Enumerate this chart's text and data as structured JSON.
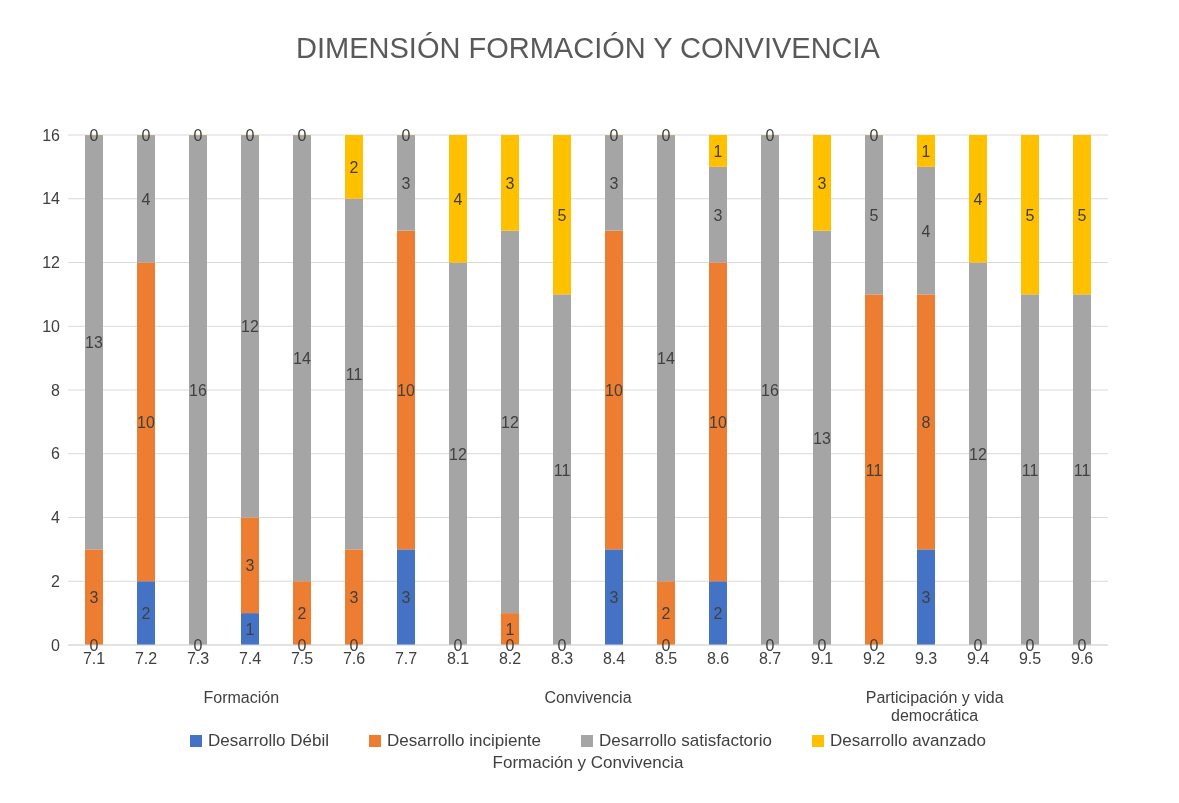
{
  "chart_data": {
    "type": "bar",
    "title": "DIMENSIÓN FORMACIÓN Y CONVIVENCIA",
    "stacked": true,
    "grid": "y",
    "legend": "bottom",
    "categories": [
      "7.1",
      "7.2",
      "7.3",
      "7.4",
      "7.5",
      "7.6",
      "7.7",
      "8.1",
      "8.2",
      "8.3",
      "8.4",
      "8.5",
      "8.6",
      "8.7",
      "9.1",
      "9.2",
      "9.3",
      "9.4",
      "9.5",
      "9.6"
    ],
    "series": [
      {
        "name": "Desarrollo Débil",
        "color": "#4472c4",
        "values": [
          0,
          2,
          0,
          1,
          0,
          0,
          3,
          0,
          0,
          0,
          3,
          0,
          2,
          0,
          0,
          0,
          3,
          0,
          0,
          0
        ],
        "value_labels": [
          "0",
          "2",
          "0",
          "1",
          "0",
          "0",
          "3",
          "0",
          "0",
          "0",
          "3",
          "0",
          "2",
          "0",
          "0",
          "0",
          "3",
          "0",
          "0",
          "0"
        ]
      },
      {
        "name": "Desarrollo incipiente",
        "color": "#ed7d31",
        "values": [
          3,
          10,
          0,
          3,
          2,
          3,
          10,
          0,
          1,
          0,
          10,
          2,
          10,
          0,
          0,
          11,
          8,
          0,
          0,
          0
        ],
        "value_labels": [
          "3",
          "10",
          null,
          "3",
          "2",
          "3",
          "10",
          null,
          "1",
          null,
          "10",
          "2",
          "10",
          null,
          null,
          "11",
          "8",
          null,
          null,
          null
        ]
      },
      {
        "name": "Desarrollo satisfactorio",
        "color": "#a5a5a5",
        "values": [
          13,
          4,
          16,
          12,
          14,
          11,
          3,
          12,
          12,
          11,
          3,
          14,
          3,
          16,
          13,
          5,
          4,
          12,
          11,
          11
        ],
        "value_labels": [
          "13",
          "4",
          "16",
          "12",
          "14",
          "11",
          "3",
          "12",
          "12",
          "11",
          "3",
          "14",
          "3",
          "16",
          "13",
          "5",
          "4",
          "12",
          "11",
          "11"
        ]
      },
      {
        "name": "Desarrollo avanzado",
        "color": "#ffc000",
        "values": [
          0,
          0,
          0,
          0,
          0,
          2,
          0,
          4,
          3,
          5,
          0,
          0,
          1,
          0,
          3,
          0,
          1,
          4,
          5,
          5
        ],
        "value_labels": [
          "0",
          "0",
          "0",
          "0",
          "0",
          "2",
          "0",
          "4",
          "3",
          "5",
          "0",
          "0",
          "1",
          "0",
          "3",
          "0",
          "1",
          "4",
          "5",
          "5"
        ]
      }
    ],
    "annotations": [
      "Formación",
      "Convivencia",
      "Participación y vida democrática",
      "Formación y Convivencia"
    ],
    "ylim": [
      0,
      16
    ],
    "yticks": [
      0,
      2,
      4,
      6,
      8,
      10,
      12,
      14,
      16
    ]
  }
}
